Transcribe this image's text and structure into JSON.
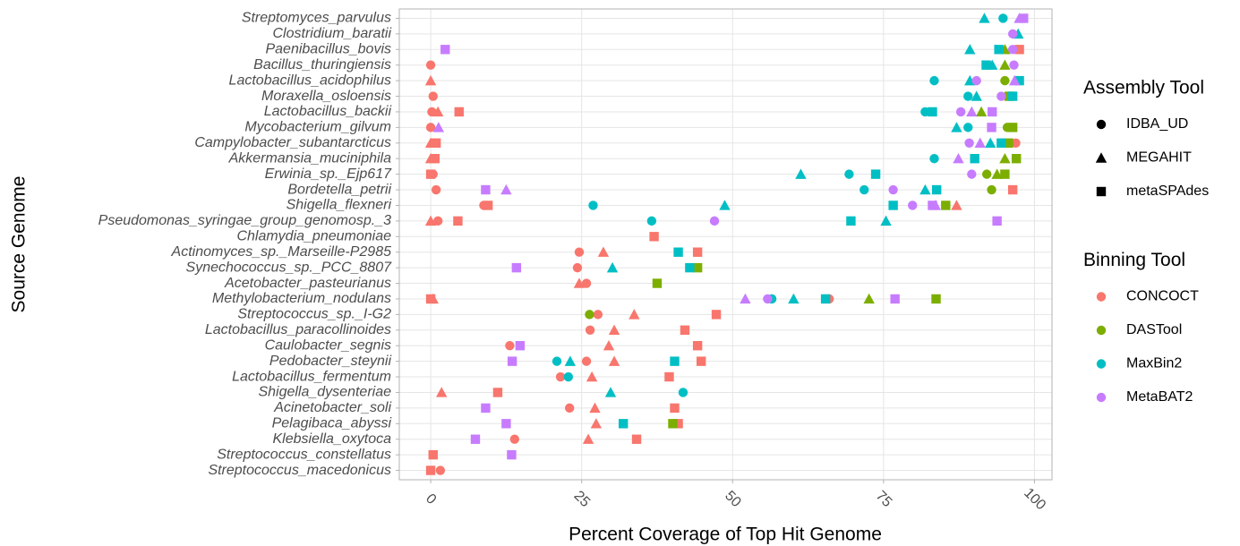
{
  "chart_data": {
    "type": "scatter",
    "x_label": "Percent Coverage of Top Hit Genome",
    "y_label": "Source Genome",
    "categories": [
      "Streptomyces_parvulus",
      "Clostridium_baratii",
      "Paenibacillus_bovis",
      "Bacillus_thuringiensis",
      "Lactobacillus_acidophilus",
      "Moraxella_osloensis",
      "Lactobacillus_backii",
      "Mycobacterium_gilvum",
      "Campylobacter_subantarcticus",
      "Akkermansia_muciniphila",
      "Erwinia_sp._Ejp617",
      "Bordetella_petrii",
      "Shigella_flexneri",
      "Pseudomonas_syringae_group_genomosp._3",
      "Chlamydia_pneumoniae",
      "Actinomyces_sp._Marseille-P2985",
      "Synechococcus_sp._PCC_8807",
      "Acetobacter_pasteurianus",
      "Methylobacterium_nodulans",
      "Streptococcus_sp._I-G2",
      "Lactobacillus_paracollinoides",
      "Caulobacter_segnis",
      "Pedobacter_steynii",
      "Lactobacillus_fermentum",
      "Shigella_dysenteriae",
      "Acinetobacter_soli",
      "Pelagibaca_abyssi",
      "Klebsiella_oxytoca",
      "Streptococcus_constellatus",
      "Streptococcus_macedonicus"
    ],
    "xlim": [
      -5.2,
      102.9
    ],
    "xticks": [
      0,
      25,
      50,
      75,
      100
    ],
    "grid": true,
    "legends": [
      {
        "title": "Assembly Tool",
        "items": [
          {
            "name": "IDBA_UD",
            "shape": "circle"
          },
          {
            "name": "MEGAHIT",
            "shape": "triangle"
          },
          {
            "name": "metaSPAdes",
            "shape": "square"
          }
        ]
      },
      {
        "title": "Binning Tool",
        "items": [
          {
            "name": "CONCOCT",
            "color": "#F8766D"
          },
          {
            "name": "DASTool",
            "color": "#7CAE00"
          },
          {
            "name": "MaxBin2",
            "color": "#00BFC4"
          },
          {
            "name": "MetaBAT2",
            "color": "#C77CFF"
          }
        ]
      }
    ],
    "series": [
      {
        "binning_tool": "CONCOCT",
        "assembly_tool": "IDBA_UD",
        "values": [
          null,
          null,
          null,
          0,
          null,
          0.4,
          0.2,
          0,
          96.9,
          null,
          0.4,
          0.9,
          8.8,
          1.2,
          null,
          24.6,
          24.3,
          25.8,
          66,
          27.7,
          26.4,
          13.1,
          25.8,
          21.5,
          null,
          23,
          null,
          13.9,
          null,
          1.6
        ]
      },
      {
        "binning_tool": "CONCOCT",
        "assembly_tool": "MEGAHIT",
        "values": [
          null,
          null,
          null,
          null,
          0,
          null,
          1.2,
          null,
          0,
          0,
          null,
          null,
          87.1,
          0,
          null,
          28.6,
          null,
          24.6,
          0.4,
          33.7,
          30.4,
          29.5,
          30.4,
          26.7,
          1.8,
          27.2,
          27.4,
          26.1,
          null,
          null
        ]
      },
      {
        "binning_tool": "CONCOCT",
        "assembly_tool": "metaSPAdes",
        "values": [
          null,
          null,
          97.5,
          null,
          null,
          null,
          4.7,
          null,
          0.9,
          0.7,
          0,
          96.4,
          9.5,
          4.5,
          37,
          44.2,
          null,
          null,
          0,
          47.3,
          42.1,
          44.2,
          44.8,
          39.5,
          11.1,
          40.4,
          41,
          34.1,
          0.4,
          0
        ]
      },
      {
        "binning_tool": "DASTool",
        "assembly_tool": "IDBA_UD",
        "values": [
          null,
          null,
          null,
          null,
          95.1,
          null,
          null,
          95.5,
          null,
          null,
          92.1,
          92.9,
          null,
          null,
          null,
          null,
          null,
          null,
          null,
          26.3,
          null,
          null,
          null,
          null,
          null,
          null,
          null,
          null,
          null,
          null
        ]
      },
      {
        "binning_tool": "DASTool",
        "assembly_tool": "MEGAHIT",
        "values": [
          null,
          null,
          95.1,
          95.1,
          null,
          null,
          91.2,
          null,
          null,
          95.1,
          93.8,
          null,
          null,
          null,
          null,
          null,
          null,
          null,
          72.6,
          null,
          null,
          null,
          null,
          null,
          null,
          null,
          null,
          null,
          null,
          null
        ]
      },
      {
        "binning_tool": "DASTool",
        "assembly_tool": "metaSPAdes",
        "values": [
          null,
          null,
          null,
          null,
          null,
          95.8,
          null,
          96.4,
          95.7,
          97.0,
          95.1,
          null,
          85.3,
          null,
          null,
          null,
          44.2,
          37.5,
          83.7,
          null,
          null,
          null,
          null,
          null,
          null,
          null,
          40.1,
          null,
          null,
          null
        ]
      },
      {
        "binning_tool": "MaxBin2",
        "assembly_tool": "IDBA_UD",
        "values": [
          94.8,
          null,
          null,
          null,
          83.4,
          89,
          81.9,
          89,
          null,
          83.4,
          69.3,
          71.8,
          26.9,
          36.6,
          null,
          null,
          null,
          null,
          56.5,
          null,
          null,
          null,
          20.9,
          22.8,
          41.8,
          null,
          null,
          null,
          null,
          null
        ]
      },
      {
        "binning_tool": "MaxBin2",
        "assembly_tool": "MEGAHIT",
        "values": [
          91.7,
          97.3,
          89.3,
          93,
          89.3,
          90.4,
          null,
          87.1,
          92.7,
          null,
          61.3,
          81.9,
          48.7,
          75.4,
          null,
          null,
          30.1,
          null,
          60.1,
          null,
          null,
          null,
          23.1,
          null,
          29.8,
          null,
          null,
          null,
          null,
          null
        ]
      },
      {
        "binning_tool": "MaxBin2",
        "assembly_tool": "metaSPAdes",
        "values": [
          null,
          null,
          94.1,
          92,
          97.5,
          96.4,
          83.1,
          null,
          94.5,
          90.1,
          73.7,
          83.8,
          76.6,
          69.6,
          null,
          41,
          42.9,
          null,
          65.4,
          null,
          null,
          null,
          40.4,
          null,
          null,
          null,
          31.9,
          null,
          null,
          null
        ]
      },
      {
        "binning_tool": "MetaBAT2",
        "assembly_tool": "IDBA_UD",
        "values": [
          null,
          96.4,
          96.4,
          96.6,
          90.4,
          94.5,
          87.8,
          null,
          89.2,
          null,
          89.6,
          76.6,
          79.8,
          47,
          null,
          null,
          null,
          null,
          55.8,
          null,
          null,
          null,
          null,
          null,
          null,
          null,
          null,
          null,
          null,
          null
        ]
      },
      {
        "binning_tool": "MetaBAT2",
        "assembly_tool": "MEGAHIT",
        "values": [
          97.5,
          null,
          null,
          null,
          96.7,
          null,
          89.6,
          1.3,
          91,
          87.4,
          null,
          12.5,
          83.6,
          null,
          null,
          null,
          null,
          null,
          52.1,
          null,
          null,
          null,
          null,
          null,
          null,
          null,
          null,
          null,
          null,
          null
        ]
      },
      {
        "binning_tool": "MetaBAT2",
        "assembly_tool": "metaSPAdes",
        "values": [
          98.2,
          null,
          2.4,
          null,
          null,
          null,
          93.0,
          92.9,
          null,
          null,
          null,
          9.1,
          83.1,
          93.8,
          null,
          null,
          14.2,
          null,
          76.9,
          null,
          null,
          14.8,
          13.5,
          null,
          null,
          9.1,
          12.5,
          7.4,
          13.4,
          null
        ]
      }
    ]
  }
}
